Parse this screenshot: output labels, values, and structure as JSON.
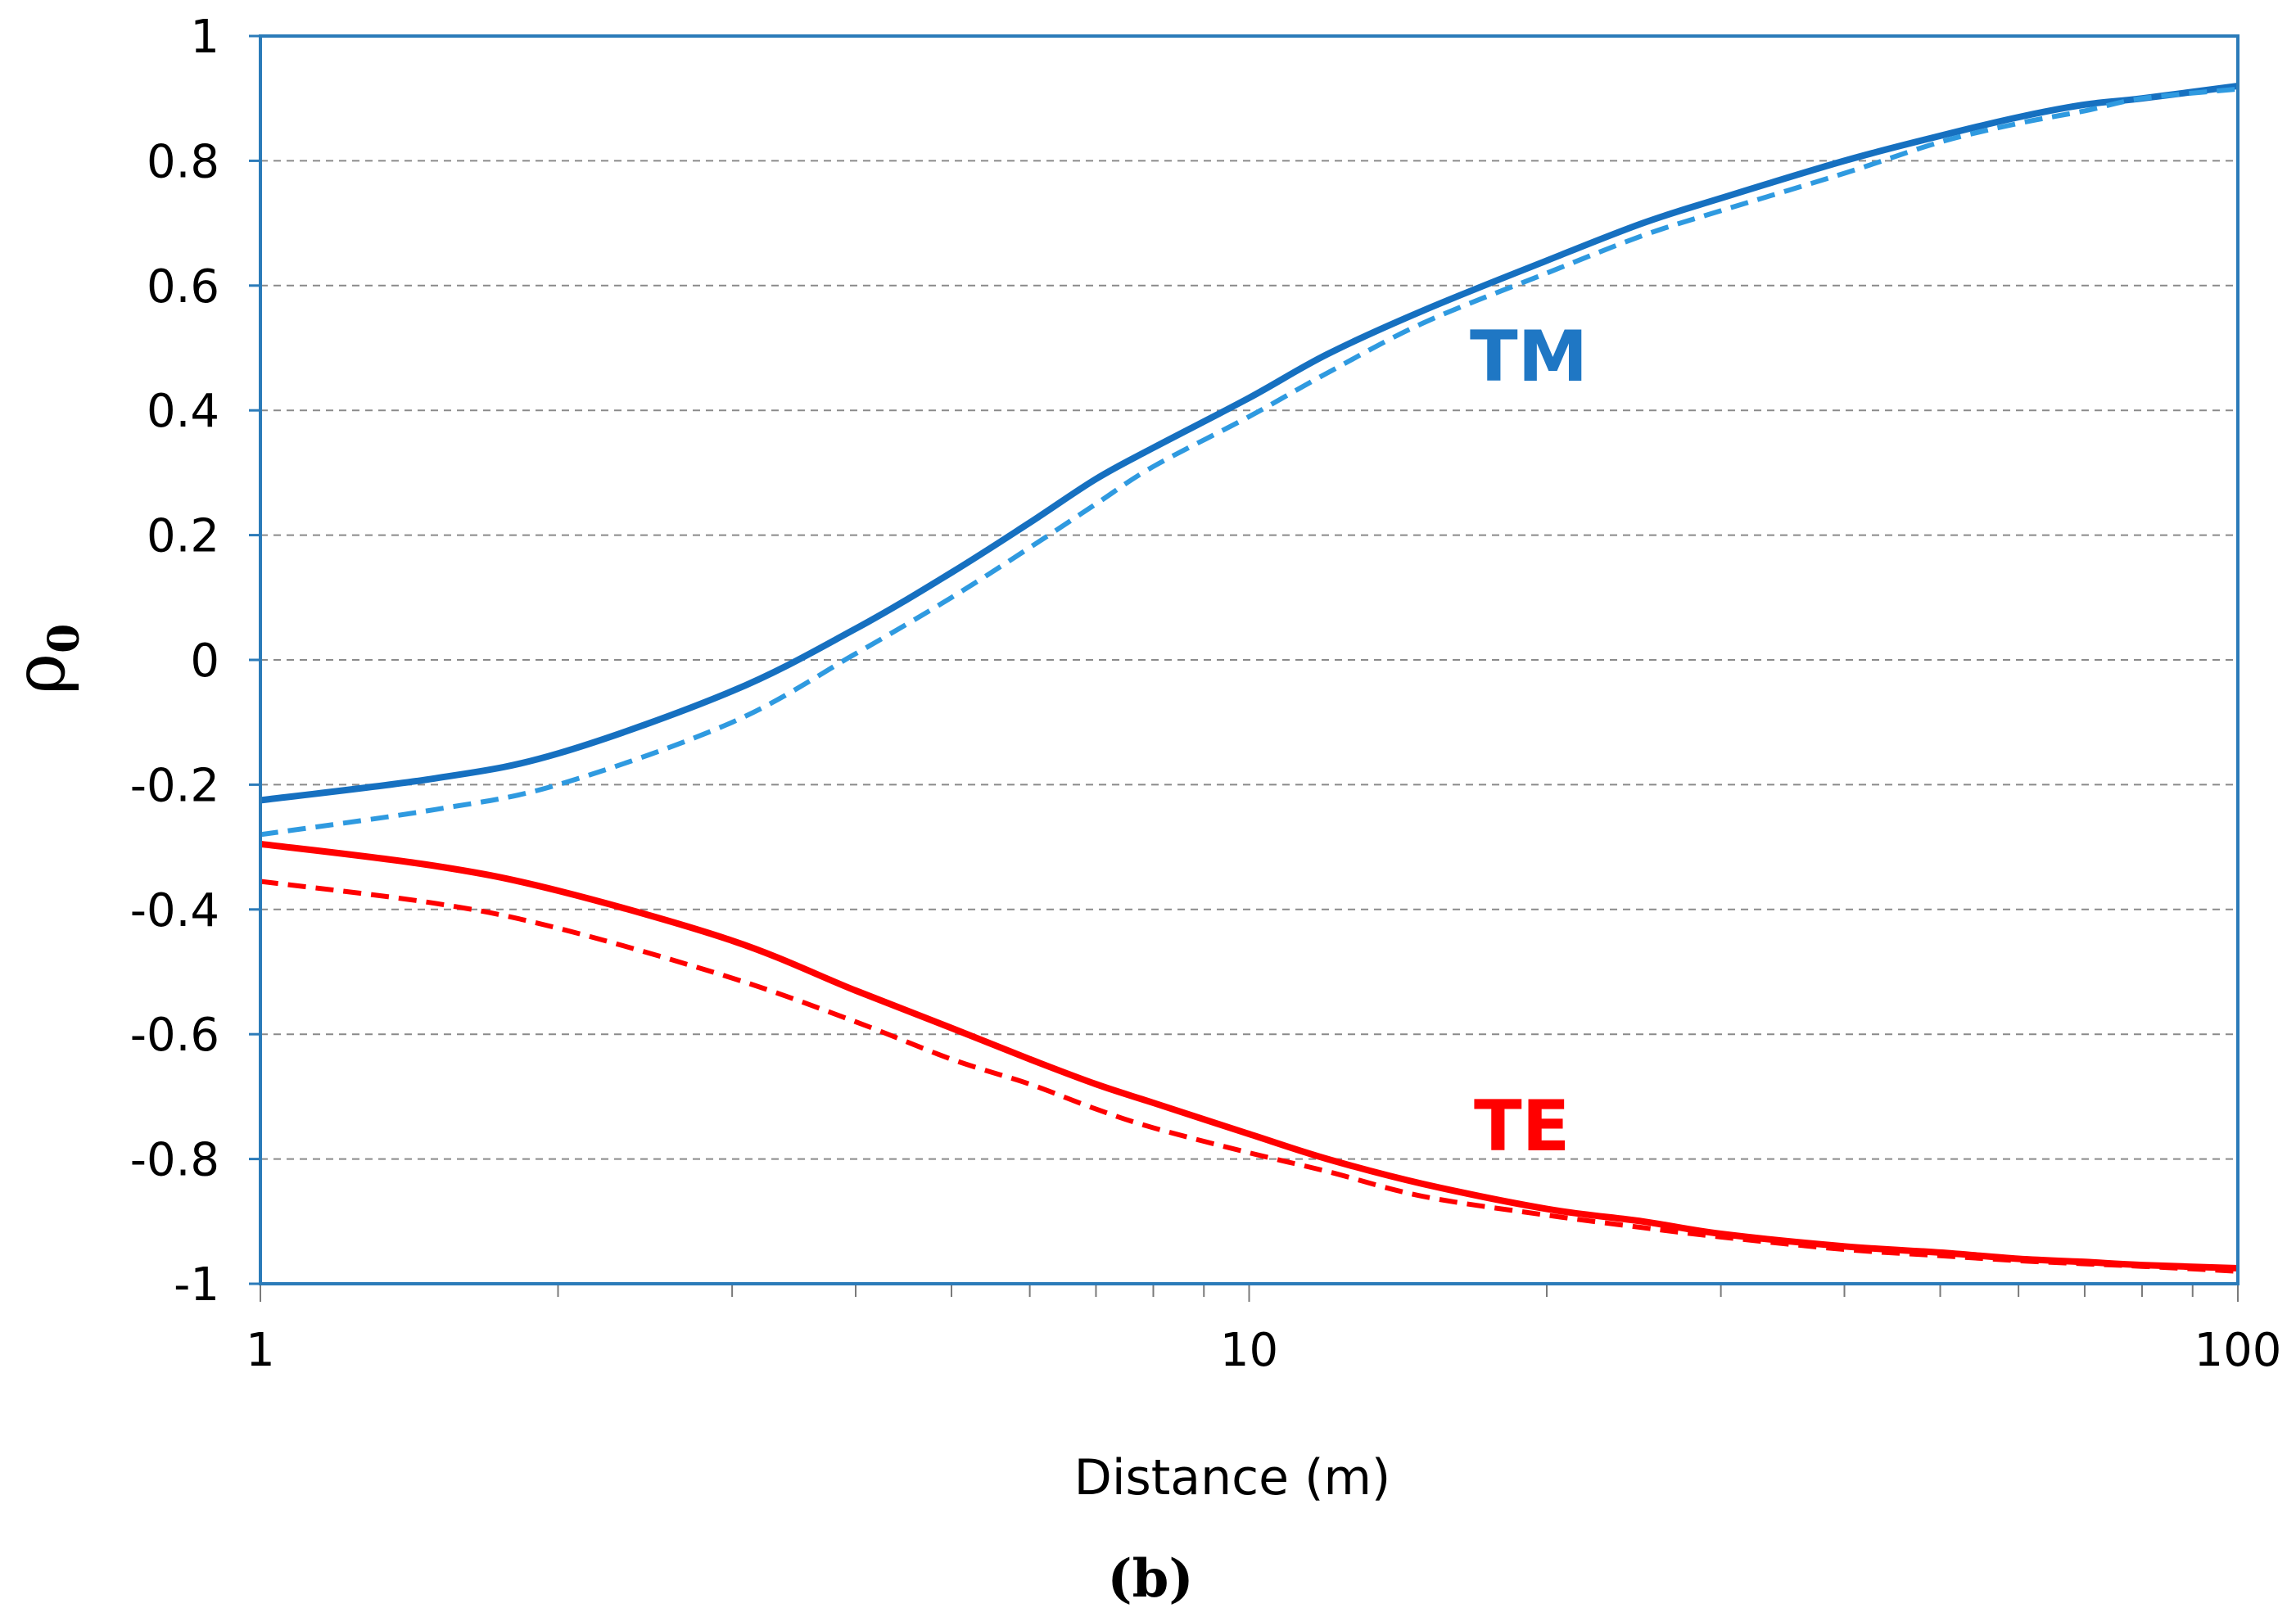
{
  "chart_data": {
    "type": "line",
    "title": "",
    "caption": "(b)",
    "xlabel": "Distance  (m)",
    "ylabel": "ρ",
    "ylabel_subscript": "0",
    "x_scale": "log",
    "xlim": [
      1,
      100
    ],
    "ylim": [
      -1,
      1
    ],
    "x_ticks": [
      "1",
      "10",
      "100"
    ],
    "y_ticks": [
      "1",
      "0.8",
      "0.6",
      "0.4",
      "0.2",
      "0",
      "-0.2",
      "-0.4",
      "-0.6",
      "-0.8",
      "-1"
    ],
    "grid": "horizontal dashed",
    "annotations": [
      {
        "text": "TM",
        "color": "#1f77c4"
      },
      {
        "text": "TE",
        "color": "#ff0000"
      }
    ],
    "series": [
      {
        "group": "TM",
        "style": "solid",
        "color": "#1670c0",
        "x": [
          1,
          1.5,
          2,
          3,
          4,
          5,
          6,
          7,
          8,
          10,
          12,
          15,
          20,
          25,
          30,
          40,
          50,
          60,
          70,
          80,
          100
        ],
        "y": [
          -0.225,
          -0.19,
          -0.15,
          -0.05,
          0.05,
          0.14,
          0.22,
          0.29,
          0.34,
          0.42,
          0.49,
          0.56,
          0.64,
          0.7,
          0.74,
          0.8,
          0.84,
          0.87,
          0.89,
          0.9,
          0.92
        ]
      },
      {
        "group": "TM",
        "style": "dashed",
        "color": "#2f9ae0",
        "x": [
          1,
          1.5,
          2,
          3,
          4,
          5,
          6,
          7,
          8,
          10,
          12,
          15,
          20,
          25,
          30,
          40,
          50,
          60,
          70,
          80,
          100
        ],
        "y": [
          -0.28,
          -0.24,
          -0.2,
          -0.1,
          0.01,
          0.1,
          0.18,
          0.25,
          0.31,
          0.39,
          0.46,
          0.54,
          0.62,
          0.68,
          0.72,
          0.78,
          0.83,
          0.86,
          0.88,
          0.9,
          0.915
        ]
      },
      {
        "group": "TE",
        "style": "solid",
        "color": "#ff0000",
        "x": [
          1,
          1.5,
          2,
          3,
          4,
          5,
          6,
          7,
          8,
          10,
          12,
          15,
          20,
          25,
          30,
          40,
          50,
          60,
          70,
          80,
          100
        ],
        "y": [
          -0.295,
          -0.33,
          -0.37,
          -0.45,
          -0.53,
          -0.59,
          -0.64,
          -0.68,
          -0.71,
          -0.76,
          -0.8,
          -0.84,
          -0.88,
          -0.9,
          -0.92,
          -0.94,
          -0.95,
          -0.96,
          -0.965,
          -0.97,
          -0.975
        ]
      },
      {
        "group": "TE",
        "style": "dashed",
        "color": "#ff0000",
        "x": [
          1,
          1.5,
          2,
          3,
          4,
          5,
          6,
          7,
          8,
          10,
          12,
          15,
          20,
          25,
          30,
          40,
          50,
          60,
          70,
          80,
          100
        ],
        "y": [
          -0.355,
          -0.39,
          -0.43,
          -0.51,
          -0.58,
          -0.64,
          -0.68,
          -0.72,
          -0.75,
          -0.79,
          -0.82,
          -0.86,
          -0.89,
          -0.91,
          -0.925,
          -0.945,
          -0.955,
          -0.963,
          -0.968,
          -0.972,
          -0.98
        ]
      }
    ]
  }
}
